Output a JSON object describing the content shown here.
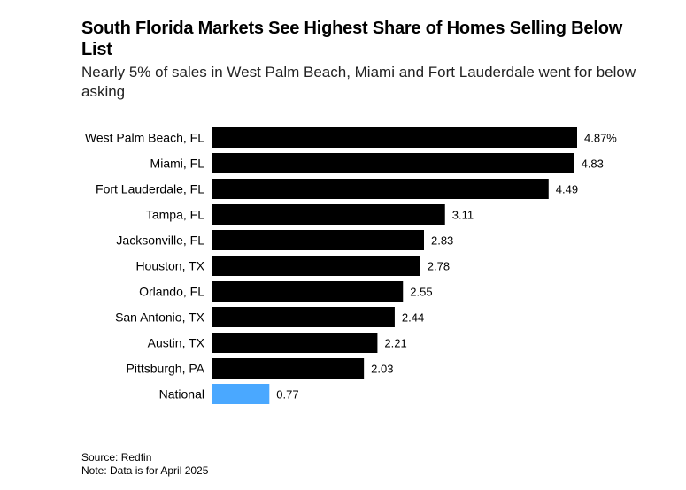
{
  "title": "South Florida Markets See Highest Share of Homes Selling Below List",
  "subtitle": "Nearly 5% of sales in West Palm Beach, Miami and Fort Lauderdale went for below asking",
  "source": "Source: Redfin",
  "note": "Note: Data is for April 2025",
  "colors": {
    "bar": "#000000",
    "highlight": "#4aa8ff"
  },
  "chart_data": {
    "type": "bar",
    "orientation": "horizontal",
    "categories": [
      "West Palm Beach, FL",
      "Miami, FL",
      "Fort Lauderdale, FL",
      "Tampa, FL",
      "Jacksonville, FL",
      "Houston, TX",
      "Orlando, FL",
      "San Antonio, TX",
      "Austin, TX",
      "Pittsburgh, PA",
      "National"
    ],
    "values": [
      4.87,
      4.83,
      4.49,
      3.11,
      2.83,
      2.78,
      2.55,
      2.44,
      2.21,
      2.03,
      0.77
    ],
    "value_labels": [
      "4.87%",
      "4.83",
      "4.49",
      "3.11",
      "2.83",
      "2.78",
      "2.55",
      "2.44",
      "2.21",
      "2.03",
      "0.77"
    ],
    "highlight_category": "National",
    "xlim": [
      0,
      4.87
    ],
    "grid": false
  }
}
